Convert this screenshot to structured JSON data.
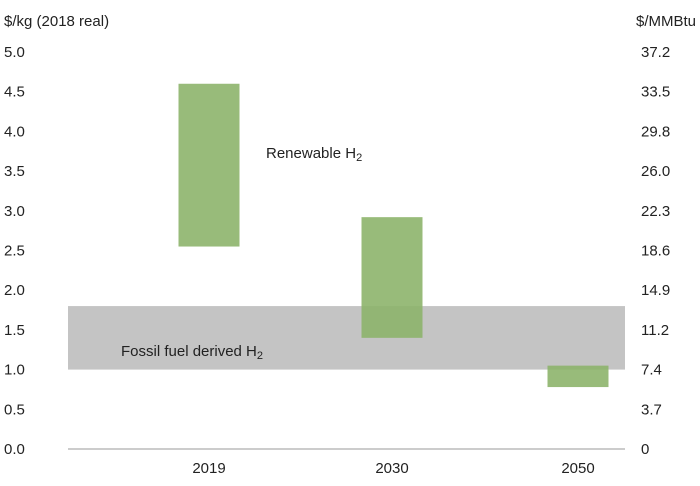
{
  "chart_data": {
    "type": "bar",
    "subtype": "floating-range",
    "categories": [
      "2019",
      "2030",
      "2050"
    ],
    "series": [
      {
        "name": "Renewable H2",
        "ranges": [
          [
            2.55,
            4.6
          ],
          [
            1.4,
            2.92
          ],
          [
            0.78,
            1.05
          ]
        ],
        "color": "#8db46b"
      }
    ],
    "band": {
      "name": "Fossil fuel derived H2",
      "low": 1.0,
      "high": 1.8,
      "color": "#c4c4c4"
    },
    "y_left": {
      "title": "$/kg (2018 real)",
      "ticks": [
        "0.0",
        "0.5",
        "1.0",
        "1.5",
        "2.0",
        "2.5",
        "3.0",
        "3.5",
        "4.0",
        "4.5",
        "5.0"
      ],
      "ylim": [
        0,
        5
      ]
    },
    "y_right": {
      "title": "$/MMBtu",
      "ticks": [
        "0",
        "3.7",
        "7.4",
        "11.2",
        "14.9",
        "18.6",
        "22.3",
        "26.0",
        "29.8",
        "33.5",
        "37.2"
      ]
    },
    "annotations": [
      {
        "text": "Renewable H",
        "sub": "2"
      },
      {
        "text": "Fossil fuel derived H",
        "sub": "2"
      }
    ],
    "grid": false
  }
}
